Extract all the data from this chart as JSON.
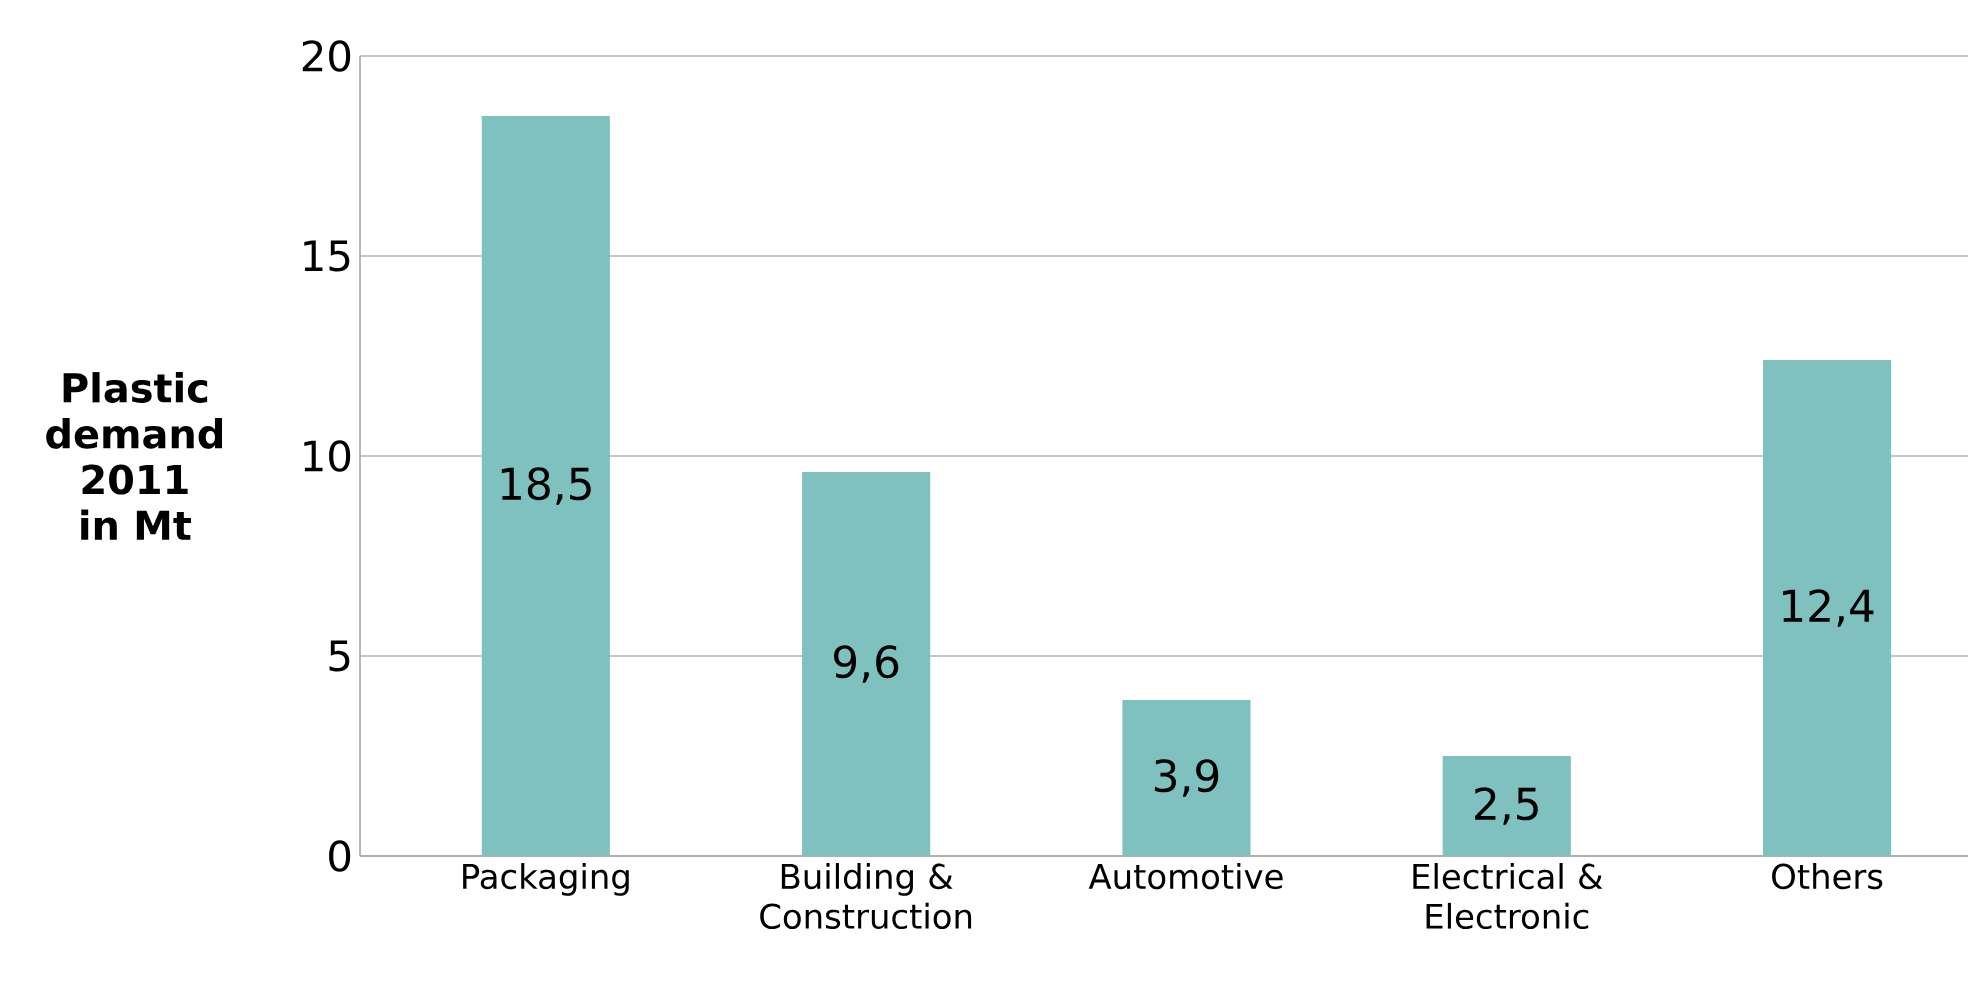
{
  "chart_data": {
    "type": "bar",
    "ylabel": "Plastic demand 2011 in Mt",
    "categories": [
      "Packaging",
      "Building & Construction",
      "Automotive",
      "Electrical & Electronic",
      "Others"
    ],
    "values": [
      18.5,
      9.6,
      3.9,
      2.5,
      12.4
    ],
    "value_labels": [
      "18,5",
      "9,6",
      "3,9",
      "2,5",
      "12,4"
    ],
    "color": "#7fc1bf",
    "ylim": [
      0,
      20
    ],
    "yticks": [
      0,
      5,
      10,
      15,
      20
    ],
    "grid": "y"
  }
}
